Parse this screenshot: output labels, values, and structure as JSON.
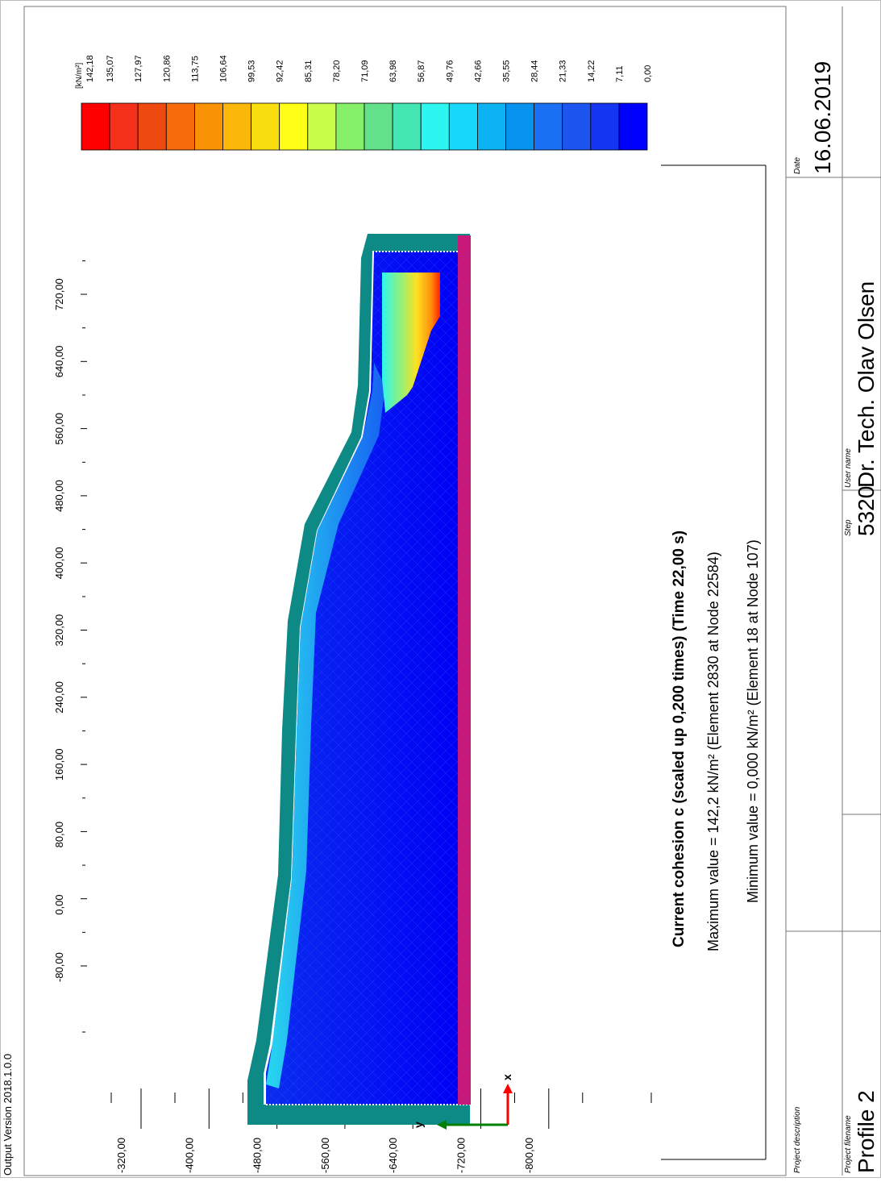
{
  "app": {
    "version_label": "Output Version 2018.1.0.0"
  },
  "plot": {
    "title": "Current cohesion c (scaled up 0,200 times) (Time 22,00 s)",
    "max_line": "Maximum value = 142,2 kN/m² (Element 2830 at Node 22584)",
    "min_line": "Minimum value = 0,000 kN/m² (Element 18 at Node 107)",
    "x_ticks": [
      "-80,00",
      "0,00",
      "80,00",
      "160,00",
      "240,00",
      "320,00",
      "400,00",
      "480,00",
      "560,00",
      "640,00",
      "720,00"
    ],
    "y_ticks": [
      "-320,00",
      "-400,00",
      "-480,00",
      "-560,00",
      "-640,00",
      "-720,00",
      "-800,00"
    ],
    "axis_x_label": "x",
    "axis_y_label": "y"
  },
  "legend": {
    "unit": "[kN/m²]",
    "values": [
      "142,18",
      "135,07",
      "127,97",
      "120,86",
      "113,75",
      "106,64",
      "99,53",
      "92,42",
      "85,31",
      "78,20",
      "71,09",
      "63,98",
      "56,87",
      "49,76",
      "42,66",
      "35,55",
      "28,44",
      "21,33",
      "14,22",
      "7,11",
      "0,00"
    ],
    "colors": [
      "#ff0000",
      "#f5301a",
      "#ee4a10",
      "#f76a0a",
      "#fa9206",
      "#fcb80a",
      "#f9de10",
      "#ffff17",
      "#c9ff4a",
      "#86f06b",
      "#62e08a",
      "#44e6b3",
      "#2df6f0",
      "#17d8f8",
      "#0cb2f2",
      "#0892f0",
      "#1a6ff2",
      "#1d55f0",
      "#1435f2",
      "#0000ff"
    ]
  },
  "footer": {
    "project_description_label": "Project description",
    "project_filename_label": "Project filename",
    "project_filename": "Profile 2",
    "step_label": "Step",
    "step": "5320",
    "user_name_label": "User name",
    "user_name": "Dr. Tech. Olav Olsen",
    "date_label": "Date",
    "date": "16.06.2019"
  }
}
